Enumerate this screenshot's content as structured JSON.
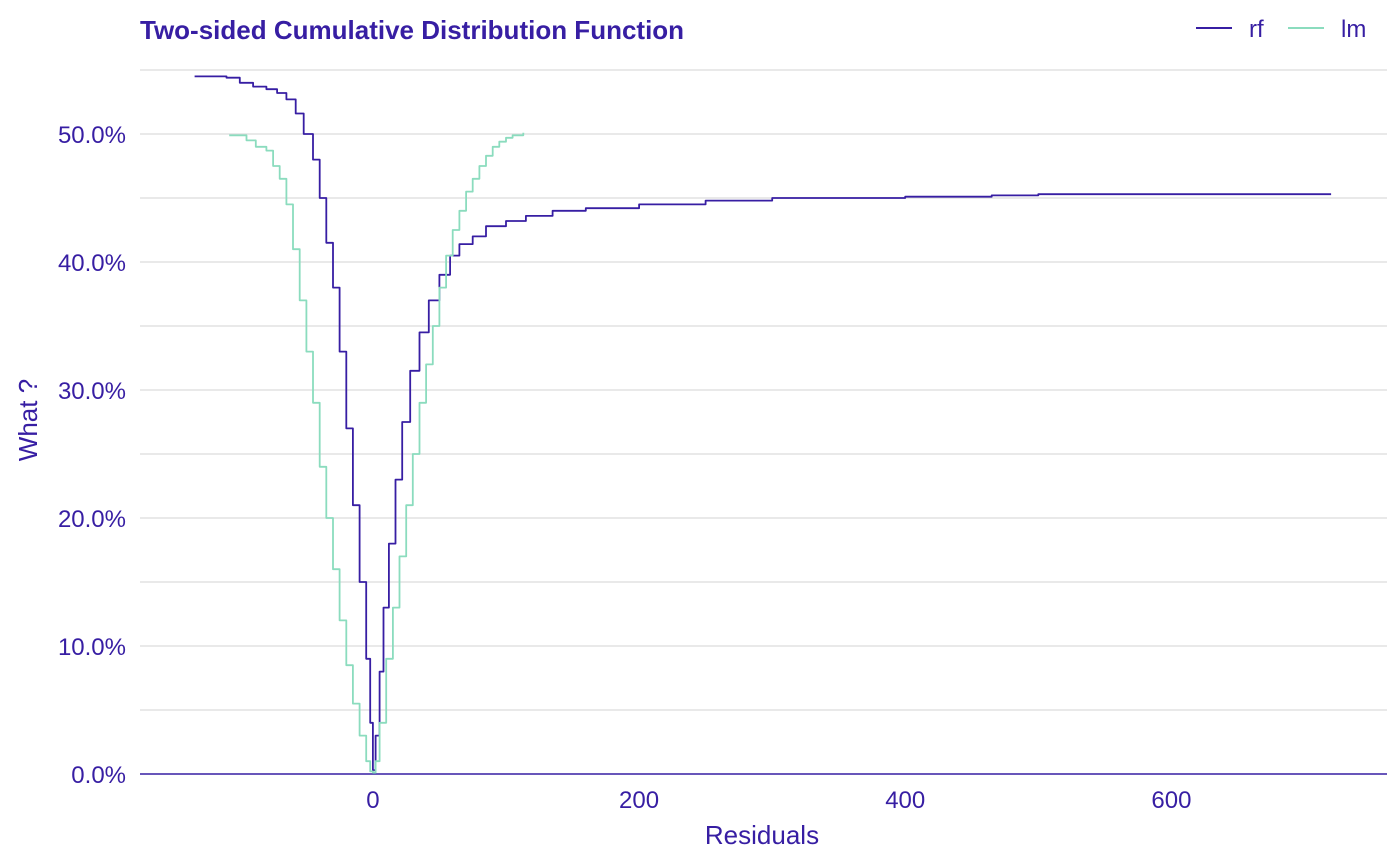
{
  "chart_data": {
    "type": "line",
    "title": "Two-sided Cumulative Distribution Function",
    "xlabel": "Residuals",
    "ylabel": "What ?",
    "xlim": [
      -175,
      762
    ],
    "ylim": [
      0,
      0.55
    ],
    "x_ticks": [
      0,
      200,
      400,
      600
    ],
    "x_tick_labels": [
      "0",
      "200",
      "400",
      "600"
    ],
    "y_ticks": [
      0,
      0.1,
      0.2,
      0.3,
      0.4,
      0.5
    ],
    "y_tick_labels": [
      "0.0%",
      "10.0%",
      "20.0%",
      "30.0%",
      "40.0%",
      "50.0%"
    ],
    "y_minor_grid": [
      0.05,
      0.15,
      0.25,
      0.35,
      0.45,
      0.55
    ],
    "grid": true,
    "legend_position": "top-right",
    "colors": {
      "text": "#371ea3",
      "grid": "#dcdcdc",
      "axis": "#371ea3"
    },
    "series": [
      {
        "name": "rf",
        "color": "#371ea3",
        "x": [
          -134,
          -110,
          -100,
          -90,
          -80,
          -72,
          -65,
          -58,
          -52,
          -45,
          -40,
          -35,
          -30,
          -25,
          -20,
          -15,
          -10,
          -5,
          -2,
          0,
          2,
          5,
          8,
          12,
          17,
          22,
          28,
          35,
          42,
          50,
          58,
          65,
          75,
          85,
          100,
          115,
          135,
          160,
          200,
          250,
          300,
          400,
          465,
          500,
          600,
          720
        ],
        "y": [
          0.545,
          0.544,
          0.54,
          0.537,
          0.535,
          0.532,
          0.527,
          0.516,
          0.5,
          0.48,
          0.45,
          0.415,
          0.38,
          0.33,
          0.27,
          0.21,
          0.15,
          0.09,
          0.04,
          0.003,
          0.03,
          0.08,
          0.13,
          0.18,
          0.23,
          0.275,
          0.315,
          0.345,
          0.37,
          0.39,
          0.405,
          0.414,
          0.42,
          0.428,
          0.432,
          0.436,
          0.44,
          0.442,
          0.445,
          0.448,
          0.45,
          0.451,
          0.452,
          0.453,
          0.453,
          0.453
        ]
      },
      {
        "name": "lm",
        "color": "#8bdcbe",
        "x": [
          -108,
          -100,
          -95,
          -88,
          -80,
          -75,
          -70,
          -65,
          -60,
          -55,
          -50,
          -45,
          -40,
          -35,
          -30,
          -25,
          -20,
          -15,
          -10,
          -5,
          -2,
          0,
          2,
          5,
          10,
          15,
          20,
          25,
          30,
          35,
          40,
          45,
          50,
          55,
          60,
          65,
          70,
          75,
          80,
          85,
          90,
          95,
          100,
          105,
          113
        ],
        "y": [
          0.499,
          0.499,
          0.495,
          0.49,
          0.487,
          0.475,
          0.465,
          0.445,
          0.41,
          0.37,
          0.33,
          0.29,
          0.24,
          0.2,
          0.16,
          0.12,
          0.085,
          0.055,
          0.03,
          0.01,
          0.002,
          0.001,
          0.01,
          0.04,
          0.09,
          0.13,
          0.17,
          0.21,
          0.25,
          0.29,
          0.32,
          0.35,
          0.38,
          0.405,
          0.425,
          0.44,
          0.455,
          0.465,
          0.475,
          0.483,
          0.49,
          0.494,
          0.497,
          0.499,
          0.501
        ]
      }
    ]
  }
}
